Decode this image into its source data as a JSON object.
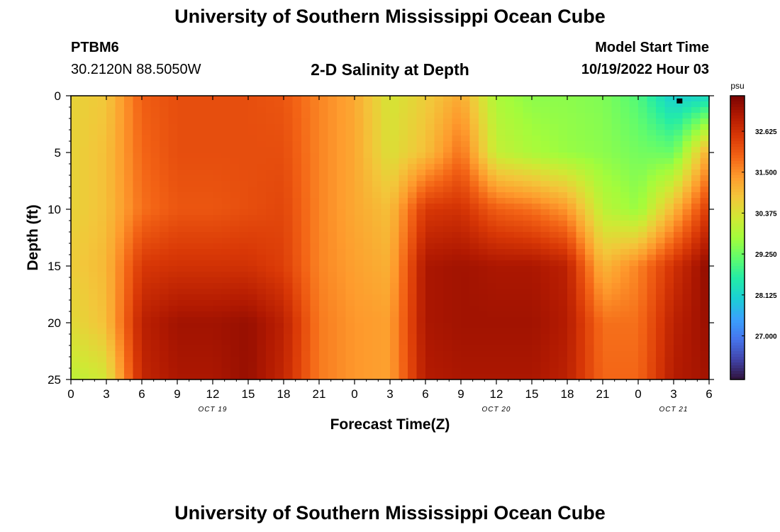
{
  "page": {
    "title": "University of Southern Mississippi Ocean Cube",
    "station": "PTBM6",
    "coords": "30.2120N  88.5050W",
    "subtitle": "2-D Salinity at Depth",
    "model_start_label": "Model Start Time",
    "model_start_value": "10/19/2022 Hour 03",
    "footer_title": "University of Southern Mississippi Ocean Cube"
  },
  "chart_data": {
    "type": "heatmap",
    "title": "2-D Salinity at Depth",
    "xlabel": "Forecast Time(Z)",
    "ylabel": "Depth (ft)",
    "x_ticks": [
      "0",
      "3",
      "6",
      "9",
      "12",
      "15",
      "18",
      "21",
      "0",
      "3",
      "6",
      "9",
      "12",
      "15",
      "18",
      "21",
      "0",
      "3",
      "6"
    ],
    "x_range_hours": [
      0,
      54
    ],
    "date_labels": [
      {
        "text": "OCT 19",
        "hour": 12
      },
      {
        "text": "OCT 20",
        "hour": 36
      },
      {
        "text": "OCT 21",
        "hour": 51
      }
    ],
    "y_ticks": [
      "0",
      "5",
      "10",
      "15",
      "20",
      "25"
    ],
    "y_range_ft": [
      0,
      25
    ],
    "colorbar": {
      "unit": "psu",
      "min": 25.8,
      "max": 33.6,
      "ticks": [
        "32.625",
        "31.500",
        "30.375",
        "29.250",
        "28.125",
        "27.000"
      ],
      "colors": [
        "#30123b",
        "#4145ab",
        "#4675ed",
        "#39a2fc",
        "#1bcfd4",
        "#24eca6",
        "#61fc6c",
        "#a4fc3b",
        "#d1e834",
        "#f3c63a",
        "#fe9b2d",
        "#f36315",
        "#d93806",
        "#b11901",
        "#7a0402"
      ]
    },
    "salinity_grid": {
      "depths_ft": [
        0,
        5,
        10,
        15,
        20,
        25
      ],
      "hours": [
        0,
        3,
        6,
        9,
        12,
        15,
        18,
        21,
        24,
        27,
        30,
        33,
        36,
        39,
        42,
        45,
        48,
        51,
        54
      ],
      "values": [
        [
          30.6,
          30.8,
          32.0,
          32.2,
          32.2,
          32.2,
          32.1,
          31.6,
          31.2,
          30.3,
          30.7,
          31.2,
          29.8,
          29.5,
          29.5,
          29.4,
          29.0,
          28.0,
          28.2
        ],
        [
          30.6,
          30.9,
          31.9,
          32.2,
          32.2,
          32.2,
          32.2,
          31.6,
          31.2,
          30.4,
          30.9,
          31.8,
          30.1,
          29.8,
          29.6,
          29.5,
          29.3,
          29.2,
          31.2
        ],
        [
          30.6,
          30.9,
          31.8,
          32.1,
          32.1,
          32.2,
          32.3,
          31.6,
          31.2,
          30.9,
          32.5,
          32.6,
          32.0,
          31.8,
          31.4,
          30.0,
          29.6,
          31.0,
          32.5
        ],
        [
          30.7,
          31.0,
          32.5,
          32.6,
          32.6,
          32.6,
          32.4,
          31.6,
          31.3,
          31.1,
          33.1,
          33.2,
          33.1,
          33.1,
          32.9,
          31.0,
          31.6,
          32.6,
          33.4
        ],
        [
          30.5,
          30.9,
          32.9,
          33.2,
          33.2,
          33.3,
          32.9,
          31.7,
          31.4,
          31.3,
          33.1,
          33.2,
          33.2,
          33.2,
          33.0,
          31.8,
          31.8,
          32.9,
          33.3
        ],
        [
          30.0,
          30.3,
          32.8,
          33.1,
          33.1,
          33.3,
          32.8,
          31.7,
          31.4,
          31.3,
          33.0,
          33.1,
          33.1,
          33.1,
          32.9,
          31.9,
          31.9,
          33.0,
          33.2
        ]
      ]
    },
    "marker": {
      "hour": 51.5,
      "depth_ft": 0.3
    }
  }
}
